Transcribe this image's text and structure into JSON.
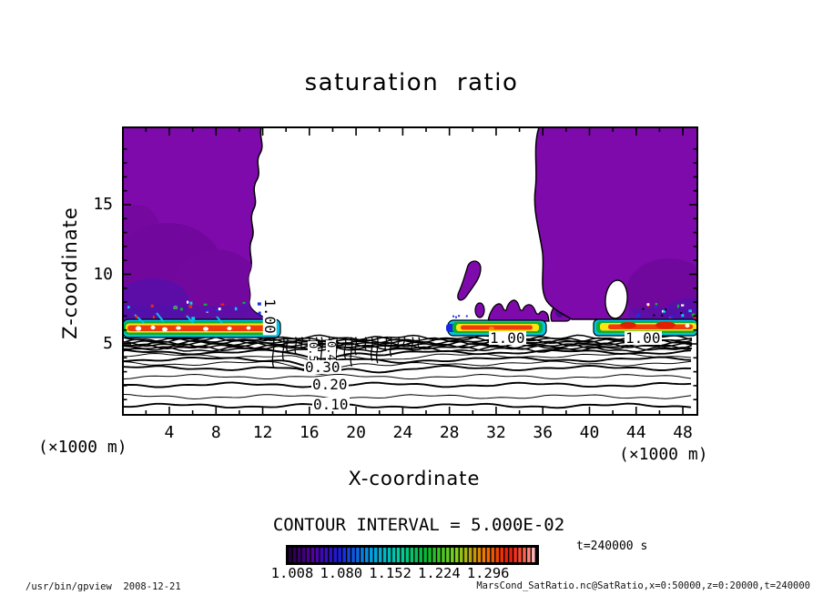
{
  "title": "saturation ratio",
  "plot": {
    "x_axis": {
      "label": "X-coordinate",
      "unit_label": "(×1000 m)"
    },
    "y_axis": {
      "label": "Z-coordinate",
      "unit_label": "(×1000 m)"
    },
    "contour_labels": {
      "s100": "1.00",
      "s050": "0.50",
      "s040": "0.40",
      "s030": "0.30",
      "s020": "0.20",
      "s010": "0.10"
    }
  },
  "legend": {
    "contour_interval_text": "CONTOUR INTERVAL = 5.000E-02",
    "colorbar_labels": [
      "1.008",
      "1.080",
      "1.152",
      "1.224",
      "1.296"
    ],
    "time_label": "t=240000 s"
  },
  "footer": {
    "left": "/usr/bin/gpview  2008-12-21",
    "right": "MarsCond_SatRatio.nc@SatRatio,x=0:50000,z=0:20000,t=240000"
  },
  "colors": {
    "background": "#ffffff",
    "frame": "#000000",
    "cloud_purple": "#7f0aac",
    "cloud_purple_dark": "#5c0da8",
    "band_cyan": "#00c4ef",
    "band_blue": "#1428e6",
    "band_green": "#0eb02c",
    "band_yellow": "#ffe414",
    "band_red": "#f03c0a",
    "colorbar_anchors": [
      "#24013e",
      "#54019f",
      "#1b1bd9",
      "#009fe8",
      "#00cfa0",
      "#08b62e",
      "#7fd41c",
      "#f07800",
      "#e81606",
      "#ff6a52",
      "#ffb4b8"
    ]
  },
  "chart_data": {
    "type": "heatmap",
    "title": "saturation ratio",
    "xlabel": "X-coordinate (×1000 m)",
    "ylabel": "Z-coordinate (×1000 m)",
    "x_range": [
      0,
      50
    ],
    "z_range": [
      0,
      20
    ],
    "x_ticks": [
      4,
      8,
      12,
      16,
      20,
      24,
      28,
      32,
      36,
      40,
      44,
      48
    ],
    "x_minor_tick_step": 2,
    "y_ticks": [
      5,
      10,
      15
    ],
    "y_minor_tick_step": 1,
    "time_seconds": 240000,
    "contour_interval": 0.05,
    "line_contour_levels": [
      0.1,
      0.15,
      0.2,
      0.25,
      0.3,
      0.35,
      0.4,
      0.45,
      0.5,
      0.55,
      0.6,
      0.65,
      0.7,
      0.75,
      0.8,
      0.85,
      0.9,
      0.95
    ],
    "labeled_contour_values": [
      0.1,
      0.2,
      0.3,
      0.4,
      0.5,
      1.0
    ],
    "shading_threshold": 1.0,
    "colorbar_tick_values": [
      1.008,
      1.08,
      1.152,
      1.224,
      1.296
    ],
    "saturated_regions": [
      {
        "x_km": [
          0,
          12
        ],
        "z_km": [
          5.4,
          20
        ],
        "note": "left cloud, strong band near 5.4-6.7 km"
      },
      {
        "x_km": [
          28,
          38
        ],
        "z_km": [
          5.4,
          10.6
        ],
        "note": "central cloud blobs over thin band"
      },
      {
        "x_km": [
          35.5,
          49.2
        ],
        "z_km": [
          5.4,
          20
        ],
        "note": "right cloud with white hole near x=42.3, z=7.6-9.5"
      }
    ],
    "surface_band_z_km": [
      5.4,
      6.7
    ],
    "notes": "Sub-saturated air (S<1) below ~5.4 km drawn as line contours every 0.05; shaded regions are S>=1."
  }
}
